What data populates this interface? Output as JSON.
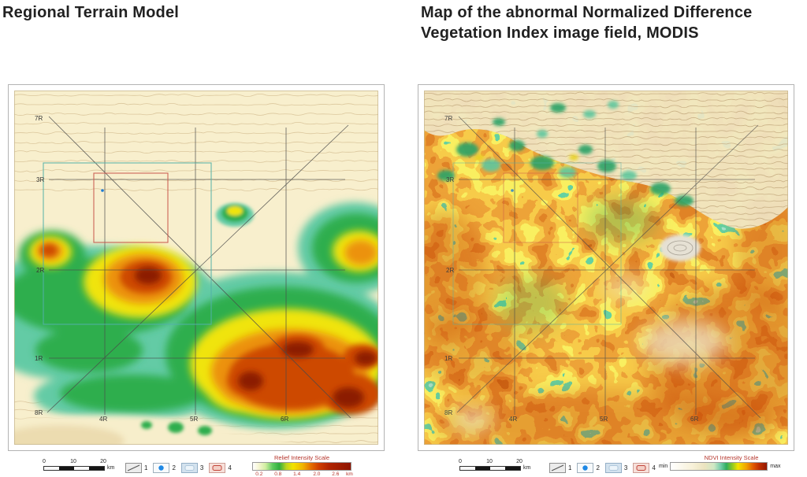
{
  "panels": [
    {
      "title": "Regional Terrain Model",
      "map": {
        "labels": [
          {
            "text": "7R"
          },
          {
            "text": "3R"
          },
          {
            "text": "2R"
          },
          {
            "text": "1R"
          },
          {
            "text": "8R"
          },
          {
            "text": "4R"
          },
          {
            "text": "5R"
          },
          {
            "text": "6R"
          }
        ]
      },
      "scale_bar": {
        "ticks": [
          "0",
          "10",
          "20"
        ],
        "unit": "km"
      },
      "legend_items": [
        {
          "number": "1",
          "symbol": "lineament-line"
        },
        {
          "number": "2",
          "symbol": "blue-dot"
        },
        {
          "number": "3",
          "symbol": "blue-rectangle"
        },
        {
          "number": "4",
          "symbol": "red-rectangle"
        }
      ],
      "colorbar": {
        "title": "Relief Intensity Scale",
        "ticks": [
          "0.2",
          "0.8",
          "1.4",
          "2.0",
          "2.6"
        ],
        "unit": "km",
        "colors": [
          "#ffffff",
          "#2fae3e",
          "#f2e300",
          "#f0b400",
          "#d04000",
          "#8e1400"
        ]
      }
    },
    {
      "title": "Map of the abnormal Normalized Difference Vegetation Index image field, MODIS",
      "map": {
        "labels": [
          {
            "text": "7R"
          },
          {
            "text": "3R"
          },
          {
            "text": "2R"
          },
          {
            "text": "1R"
          },
          {
            "text": "8R"
          },
          {
            "text": "4R"
          },
          {
            "text": "5R"
          },
          {
            "text": "6R"
          }
        ]
      },
      "scale_bar": {
        "ticks": [
          "0",
          "10",
          "20"
        ],
        "unit": "km"
      },
      "legend_items": [
        {
          "number": "1",
          "symbol": "lineament-line"
        },
        {
          "number": "2",
          "symbol": "blue-dot"
        },
        {
          "number": "3",
          "symbol": "blue-rectangle"
        },
        {
          "number": "4",
          "symbol": "red-rectangle"
        }
      ],
      "colorbar": {
        "title": "NDVI Intensity Scale",
        "min_label": "min",
        "max_label": "max",
        "colors": [
          "#ffffff",
          "#f8f2da",
          "#74ccaa",
          "#2fae5e",
          "#f2e300",
          "#f0a000",
          "#c03000",
          "#931800"
        ]
      }
    }
  ]
}
